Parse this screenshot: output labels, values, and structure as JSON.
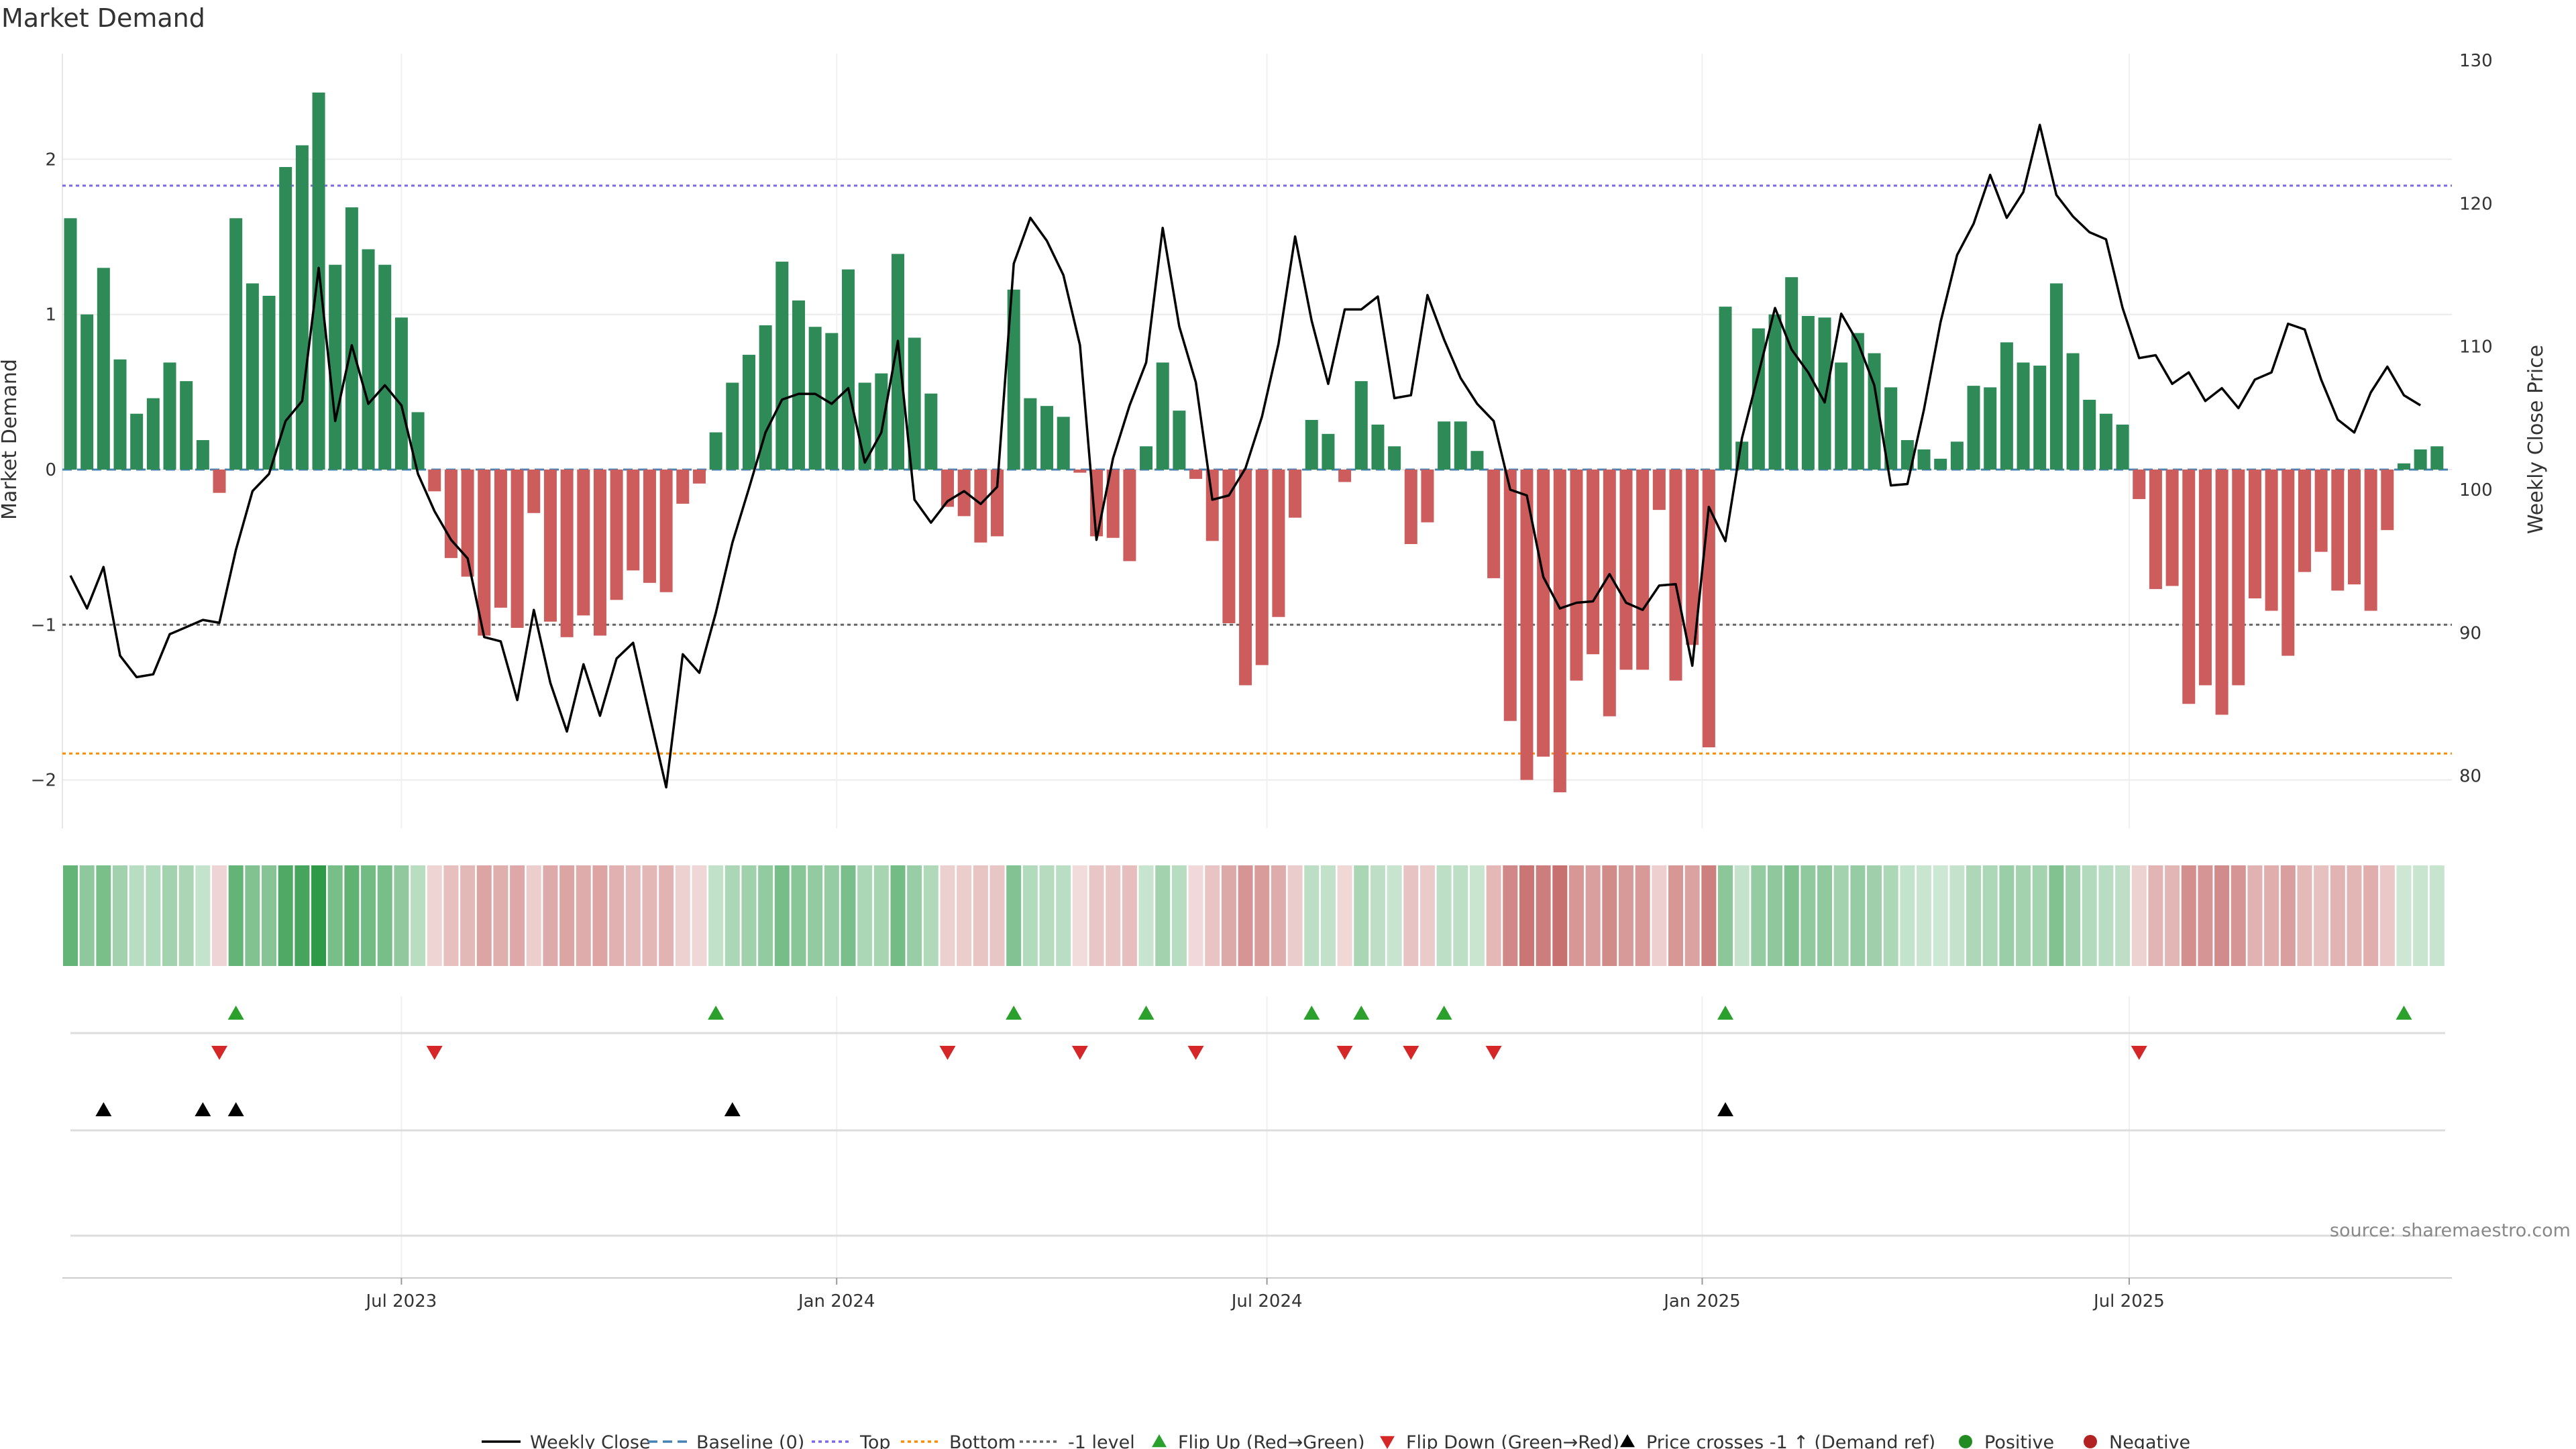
{
  "chart_data": {
    "type": "bar",
    "title": "Market Demand",
    "ylabel": "Market Demand",
    "y2label": "Weekly Close Price",
    "ylim": [
      -2.35,
      2.7
    ],
    "y2lim": [
      76.2,
      130.4
    ],
    "yticks": [
      -2,
      -1,
      0,
      1,
      2
    ],
    "y2ticks": [
      80,
      90,
      100,
      110,
      120,
      130
    ],
    "levels": {
      "baseline": 0,
      "top": 1.83,
      "bottom": -1.83,
      "minus_one": -1
    },
    "x_months": [
      "Jul 2023",
      "Jan 2024",
      "Jul 2024",
      "Jan 2025",
      "Jul 2025"
    ],
    "x_month_weeks": [
      20,
      46.3,
      72.3,
      98.6,
      124.4
    ],
    "demand": [
      1.62,
      1.0,
      1.3,
      0.71,
      0.36,
      0.46,
      0.69,
      0.57,
      0.19,
      -0.15,
      1.62,
      1.2,
      1.12,
      1.95,
      2.09,
      2.43,
      1.32,
      1.69,
      1.42,
      1.32,
      0.98,
      0.37,
      -0.14,
      -0.57,
      -0.69,
      -1.07,
      -0.89,
      -1.02,
      -0.28,
      -0.98,
      -1.08,
      -0.94,
      -1.07,
      -0.84,
      -0.65,
      -0.73,
      -0.79,
      -0.22,
      -0.09,
      0.24,
      0.56,
      0.74,
      0.93,
      1.34,
      1.09,
      0.92,
      0.88,
      1.29,
      0.56,
      0.62,
      1.39,
      0.85,
      0.49,
      -0.24,
      -0.3,
      -0.47,
      -0.43,
      1.16,
      0.46,
      0.41,
      0.34,
      -0.02,
      -0.43,
      -0.44,
      -0.59,
      0.15,
      0.69,
      0.38,
      -0.06,
      -0.46,
      -0.99,
      -1.39,
      -1.26,
      -0.95,
      -0.31,
      0.32,
      0.23,
      -0.08,
      0.57,
      0.29,
      0.15,
      -0.48,
      -0.34,
      0.31,
      0.31,
      0.12,
      -0.7,
      -1.62,
      -2.0,
      -1.85,
      -2.08,
      -1.36,
      -1.19,
      -1.59,
      -1.29,
      -1.29,
      -0.26,
      -1.36,
      -1.13,
      -1.79,
      1.05,
      0.18,
      0.91,
      1.0,
      1.24,
      0.99,
      0.98,
      0.69,
      0.88,
      0.75,
      0.53,
      0.19,
      0.13,
      0.07,
      0.18,
      0.54,
      0.53,
      0.82,
      0.69,
      0.67,
      1.2,
      0.75,
      0.45,
      0.36,
      0.29,
      -0.19,
      -0.77,
      -0.75,
      -1.51,
      -1.39,
      -1.58,
      -1.39,
      -0.83,
      -0.91,
      -1.2,
      -0.66,
      -0.53,
      -0.78,
      -0.74,
      -0.91,
      -0.39,
      0.04,
      0.13,
      0.15
    ],
    "price": [
      94,
      91.7,
      94.6,
      88.4,
      86.9,
      87.1,
      89.9,
      90.4,
      90.9,
      90.7,
      95.8,
      99.9,
      101.1,
      104.8,
      106.2,
      115.5,
      104.8,
      110.1,
      106,
      107.3,
      105.9,
      101.1,
      98.5,
      96.5,
      95.2,
      89.7,
      89.4,
      85.3,
      91.6,
      86.5,
      83.1,
      87.8,
      84.2,
      88.2,
      89.3,
      84.2,
      79.2,
      88.5,
      87.2,
      91.4,
      96.3,
      100.1,
      104,
      106.3,
      106.7,
      106.7,
      106,
      107.1,
      101.9,
      104,
      110.4,
      99.3,
      97.7,
      99.2,
      99.9,
      99,
      100.2,
      115.8,
      119,
      117.4,
      115,
      110.1,
      96.5,
      102.2,
      105.9,
      108.9,
      118.3,
      111.4,
      107.5,
      99.3,
      99.6,
      101.5,
      105.1,
      110.2,
      117.7,
      111.8,
      107.4,
      112.6,
      112.6,
      113.5,
      106.4,
      106.6,
      113.6,
      110.5,
      107.8,
      106,
      104.8,
      100,
      99.6,
      93.9,
      91.7,
      92.1,
      92.2,
      94.1,
      92.1,
      91.6,
      93.3,
      93.4,
      87.7,
      98.8,
      96.4,
      103.6,
      108.1,
      112.7,
      109.8,
      108.2,
      106.1,
      112.3,
      110.3,
      107.3,
      100.3,
      100.4,
      105.6,
      111.7,
      116.4,
      118.6,
      122,
      119,
      120.8,
      125.5,
      120.6,
      119.1,
      118,
      117.5,
      112.7,
      109.2,
      109.4,
      107.4,
      108.2,
      106.2,
      107.1,
      105.7,
      107.7,
      108.2,
      111.6,
      111.2,
      107.7,
      104.9,
      104,
      106.8,
      108.6,
      106.6,
      105.9
    ],
    "flip_up_weeks": [
      10,
      39,
      57,
      65,
      75,
      78,
      83,
      100,
      141
    ],
    "flip_down_weeks": [
      9,
      22,
      53,
      61,
      68,
      77,
      81,
      86,
      125
    ],
    "price_cross_weeks": [
      2,
      8,
      10,
      40,
      100
    ],
    "legend": [
      "Weekly Close",
      "Baseline (0)",
      "Top",
      "Bottom",
      "-1 level",
      "Flip Up (Red→Green)",
      "Flip Down (Green→Red)",
      "Price crosses -1 ↑ (Demand ref)",
      "Positive",
      "Negative"
    ],
    "grid": true,
    "legend_position": "bottom-center",
    "source": "source: sharemaestro.com",
    "colors": {
      "positive_bar": "#2e8b57",
      "negative_bar": "#cd5c5c",
      "price_line": "#000000",
      "baseline": "#4682b4",
      "top": "#7b68ee",
      "bottom": "#ff8c00",
      "minus_one": "#666666",
      "flip_up": "#2ca02c",
      "flip_down": "#d62728",
      "cross": "#000000",
      "positive_dot": "#228b22",
      "negative_dot": "#b22222"
    }
  }
}
